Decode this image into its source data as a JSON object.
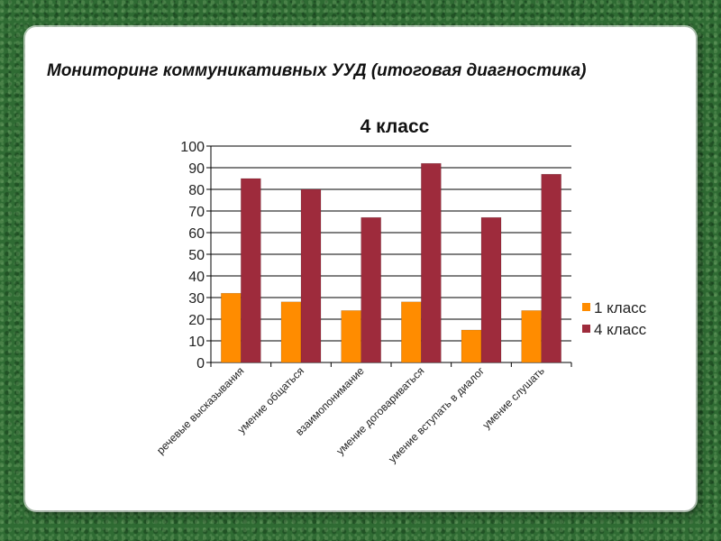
{
  "slide": {
    "title": "Мониторинг коммуникативных УУД (итоговая диагностика)"
  },
  "colors": {
    "series_1": "#ff8c00",
    "series_2": "#9e2b3c",
    "grid": "#000000",
    "background": "#2f6b33"
  },
  "chart_data": {
    "type": "bar",
    "title": "4 класс",
    "categories": [
      "речевые высказывания",
      "умение общаться",
      "взаимопонимание",
      "умение договариваться",
      "умение вступать в диалог",
      "умение слушать"
    ],
    "series": [
      {
        "name": "1 класс",
        "values": [
          32,
          28,
          24,
          28,
          15,
          24
        ]
      },
      {
        "name": "4 класс",
        "values": [
          85,
          80,
          67,
          92,
          67,
          87
        ]
      }
    ],
    "ylim": [
      0,
      100
    ],
    "yticks": [
      0,
      10,
      20,
      30,
      40,
      50,
      60,
      70,
      80,
      90,
      100
    ],
    "grid": true,
    "legend_position": "right"
  }
}
